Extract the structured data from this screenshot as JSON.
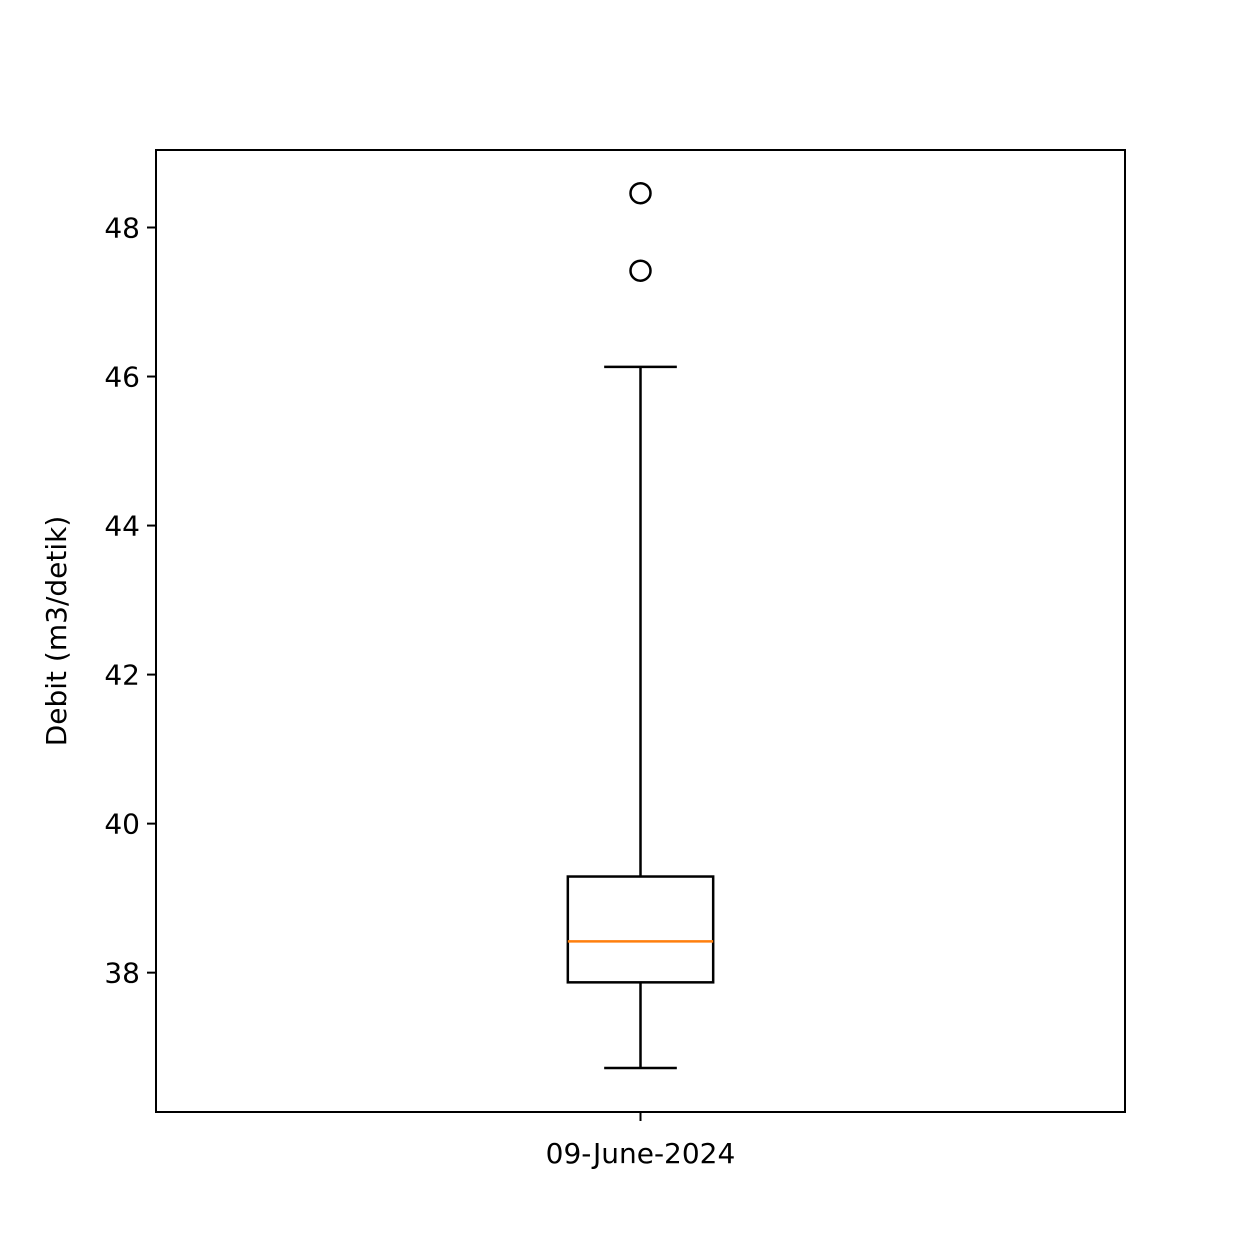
{
  "chart_data": {
    "type": "boxplot",
    "title": "",
    "xlabel": "",
    "ylabel": "Debit (m3/detik)",
    "categories": [
      "09-June-2024"
    ],
    "ylim": [
      36.13,
      49.04
    ],
    "yticks": [
      38,
      40,
      42,
      44,
      46,
      48
    ],
    "grid": false,
    "boxes": [
      {
        "category": "09-June-2024",
        "whisker_low": 36.72,
        "q1": 37.87,
        "median": 38.42,
        "q3": 39.29,
        "whisker_high": 46.13,
        "outliers": [
          47.42,
          48.46
        ]
      }
    ],
    "colors": {
      "box": "#000000",
      "median": "#ff7f0e",
      "axes": "#000000"
    }
  }
}
